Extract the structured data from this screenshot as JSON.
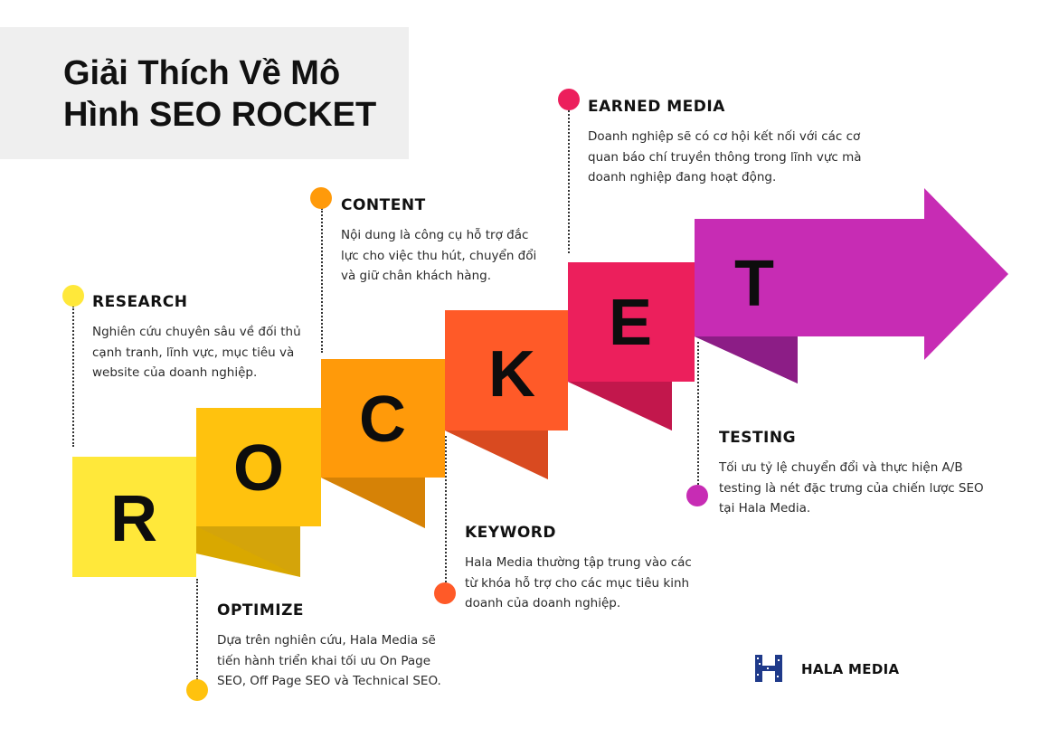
{
  "title": "Giải Thích Về Mô Hình SEO ROCKET",
  "colors": {
    "r": "#FFE83A",
    "o": "#FFC20E",
    "c": "#FF9A0A",
    "k": "#FF5A28",
    "e": "#EC1F5C",
    "t": "#C72CB4"
  },
  "letters": {
    "r": "R",
    "o": "O",
    "c": "C",
    "k": "K",
    "e": "E",
    "t": "T"
  },
  "steps": {
    "research": {
      "heading": "RESEARCH",
      "text": "Nghiên cứu chuyên sâu về đối thủ cạnh tranh, lĩnh vực, mục tiêu và website của doanh nghiệp."
    },
    "optimize": {
      "heading": "OPTIMIZE",
      "text": "Dựa trên nghiên cứu, Hala Media sẽ tiến hành triển khai tối ưu On Page SEO, Off Page SEO và Technical SEO."
    },
    "content": {
      "heading": "CONTENT",
      "text": "Nội dung là công cụ hỗ trợ đắc lực cho việc thu hút, chuyển đổi và giữ chân khách hàng."
    },
    "keyword": {
      "heading": "KEYWORD",
      "text": "Hala Media thường tập trung vào các từ khóa hỗ trợ cho các mục tiêu kinh doanh của doanh nghiệp."
    },
    "earned_media": {
      "heading": "EARNED MEDIA",
      "text": "Doanh nghiệp sẽ có cơ hội kết nối với các cơ quan báo chí truyền thông trong lĩnh vực mà doanh nghiệp đang hoạt động."
    },
    "testing": {
      "heading": "TESTING",
      "text": "Tối ưu tỷ lệ chuyển đổi và thực hiện A/B testing là nét đặc trưng của chiến lược SEO tại Hala Media."
    }
  },
  "brand": {
    "name": "HALA MEDIA",
    "logo_icon": "hala-media-logo-icon"
  }
}
